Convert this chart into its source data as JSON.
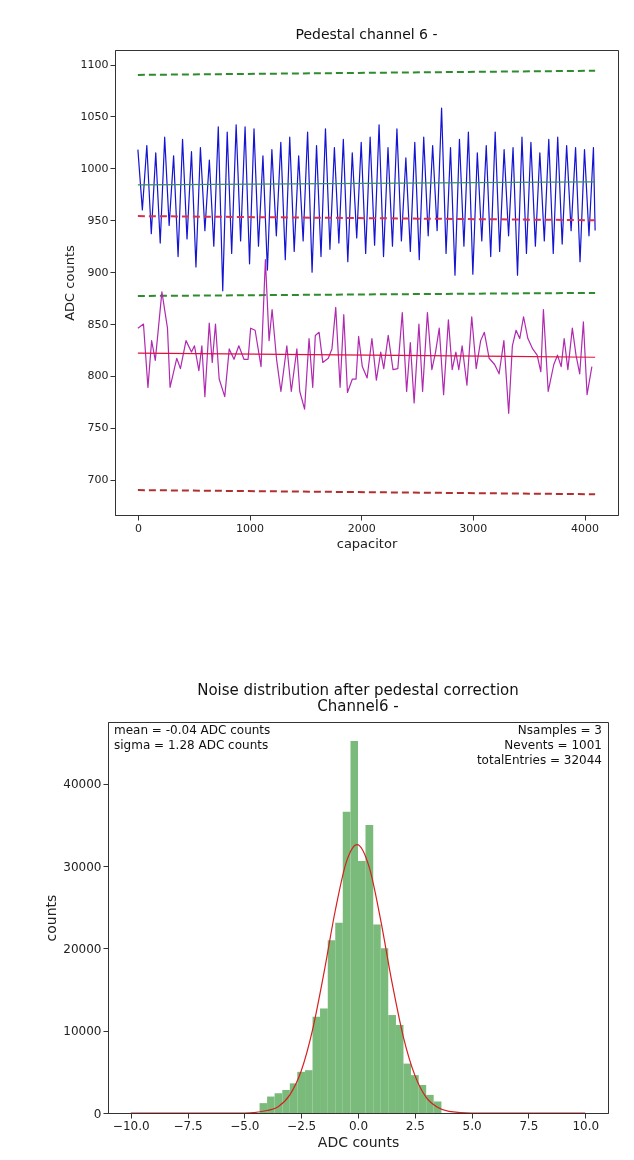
{
  "chart_data": [
    {
      "type": "line",
      "title": "Pedestal channel 6 -",
      "xlabel": "capacitor",
      "ylabel": "ADC counts",
      "xlim": [
        -205,
        4300
      ],
      "ylim": [
        666,
        1114
      ],
      "xticks": [
        0,
        1000,
        2000,
        3000,
        4000
      ],
      "yticks": [
        700,
        750,
        800,
        850,
        900,
        950,
        1000,
        1050,
        1100
      ],
      "series": [
        {
          "color": "#1414d2",
          "x": [
            0,
            40,
            80,
            120,
            160,
            200,
            240,
            280,
            320,
            360,
            400,
            440,
            480,
            520,
            560,
            600,
            640,
            680,
            720,
            760,
            800,
            840,
            880,
            920,
            960,
            1000,
            1040,
            1080,
            1120,
            1160,
            1200,
            1240,
            1280,
            1320,
            1360,
            1400,
            1440,
            1480,
            1520,
            1560,
            1600,
            1640,
            1680,
            1720,
            1760,
            1800,
            1840,
            1880,
            1920,
            1960,
            2000,
            2040,
            2080,
            2120,
            2160,
            2200,
            2240,
            2280,
            2320,
            2360,
            2400,
            2440,
            2480,
            2520,
            2560,
            2600,
            2640,
            2680,
            2720,
            2760,
            2800,
            2840,
            2880,
            2920,
            2960,
            3000,
            3040,
            3080,
            3120,
            3160,
            3200,
            3240,
            3280,
            3320,
            3360,
            3400,
            3440,
            3480,
            3520,
            3560,
            3600,
            3640,
            3680,
            3720,
            3760,
            3800,
            3840,
            3880,
            3920,
            3960,
            4000,
            4040,
            4080,
            4095
          ],
          "values": [
            1018,
            960,
            1022,
            937,
            1015,
            928,
            1030,
            945,
            1012,
            915,
            1028,
            932,
            1016,
            905,
            1020,
            940,
            1008,
            925,
            1040,
            882,
            1035,
            918,
            1042,
            930,
            1040,
            908,
            1038,
            925,
            1012,
            902,
            1018,
            935,
            1025,
            912,
            1030,
            920,
            1012,
            930,
            1035,
            900,
            1022,
            915,
            1038,
            922,
            1020,
            928,
            1028,
            910,
            1015,
            933,
            1025,
            918,
            1030,
            926,
            1042,
            915,
            1020,
            925,
            1038,
            930,
            1010,
            920,
            1025,
            912,
            1030,
            935,
            1022,
            940,
            1058,
            918,
            1020,
            897,
            1028,
            925,
            1035,
            898,
            1015,
            930,
            1022,
            915,
            1035,
            920,
            1018,
            935,
            1020,
            897,
            1030,
            918,
            1025,
            925,
            1015,
            930,
            1028,
            918,
            1030,
            927,
            1022,
            940,
            1020,
            910,
            1018,
            935,
            1020,
            940
          ]
        },
        {
          "color": "#3c8c64",
          "x": [
            0,
            4095
          ],
          "values": [
            984,
            987
          ]
        },
        {
          "color": "#2e8b2e",
          "line_style": "dashed",
          "x": [
            0,
            4095
          ],
          "values": [
            1090,
            1094
          ]
        },
        {
          "color": "#d83050",
          "line_style": "dashed",
          "x": [
            0,
            4095
          ],
          "values": [
            954,
            950
          ]
        },
        {
          "color": "#2e8b2e",
          "line_style": "dashed",
          "x": [
            0,
            4095
          ],
          "values": [
            877,
            880
          ]
        },
        {
          "color": "#b02ab0",
          "x": [
            0,
            50,
            90,
            123,
            156,
            215,
            265,
            288,
            348,
            381,
            431,
            480,
            507,
            546,
            573,
            600,
            639,
            666,
            695,
            728,
            778,
            818,
            861,
            904,
            950,
            987,
            1010,
            1050,
            1103,
            1142,
            1175,
            1202,
            1242,
            1281,
            1334,
            1374,
            1424,
            1450,
            1493,
            1533,
            1566,
            1589,
            1623,
            1656,
            1705,
            1738,
            1772,
            1811,
            1844,
            1877,
            1921,
            1954,
            1977,
            2010,
            2053,
            2096,
            2136,
            2175,
            2202,
            2242,
            2285,
            2328,
            2368,
            2407,
            2440,
            2474,
            2517,
            2550,
            2593,
            2633,
            2666,
            2699,
            2738,
            2781,
            2815,
            2848,
            2874,
            2904,
            2947,
            2990,
            3030,
            3070,
            3103,
            3146,
            3195,
            3235,
            3278,
            3321,
            3354,
            3387,
            3420,
            3454,
            3493,
            3536,
            3576,
            3609,
            3632,
            3675,
            3725,
            3758,
            3791,
            3818,
            3851,
            3891,
            3924,
            3957,
            3990,
            4023,
            4066
          ],
          "values": [
            846,
            850,
            789,
            834,
            815,
            881,
            846,
            789,
            817,
            807,
            834,
            823,
            829,
            805,
            829,
            780,
            851,
            813,
            850,
            797,
            780,
            826,
            816,
            829,
            816,
            816,
            846,
            844,
            809,
            912,
            834,
            864,
            816,
            785,
            829,
            785,
            826,
            785,
            768,
            836,
            789,
            839,
            842,
            813,
            817,
            826,
            866,
            789,
            859,
            784,
            797,
            797,
            838,
            809,
            798,
            836,
            796,
            823,
            807,
            839,
            806,
            807,
            861,
            785,
            832,
            774,
            850,
            785,
            861,
            806,
            823,
            846,
            782,
            854,
            806,
            823,
            806,
            829,
            791,
            857,
            807,
            834,
            842,
            817,
            811,
            802,
            834,
            764,
            829,
            844,
            836,
            857,
            836,
            826,
            820,
            804,
            864,
            785,
            811,
            820,
            809,
            836,
            806,
            846,
            820,
            802,
            852,
            782,
            809
          ]
        },
        {
          "color": "#e0103c",
          "x": [
            0,
            4095
          ],
          "values": [
            822,
            818
          ]
        },
        {
          "color": "#b03030",
          "line_style": "dashed",
          "x": [
            0,
            4095
          ],
          "values": [
            690,
            686
          ]
        }
      ]
    },
    {
      "type": "histogram",
      "title": "Noise distribution after pedestal correction",
      "subtitle": "Channel6 -",
      "xlabel": "ADC counts",
      "ylabel": "counts",
      "xlim": [
        -11,
        11
      ],
      "ylim": [
        0,
        47500
      ],
      "xticks": [
        {
          "value": -10,
          "label": "−10.0"
        },
        {
          "value": -7.5,
          "label": "−7.5"
        },
        {
          "value": -5,
          "label": "−5.0"
        },
        {
          "value": -2.5,
          "label": "−2.5"
        },
        {
          "value": 0,
          "label": "0.0"
        },
        {
          "value": 2.5,
          "label": "2.5"
        },
        {
          "value": 5,
          "label": "5.0"
        },
        {
          "value": 7.5,
          "label": "7.5"
        },
        {
          "value": 10,
          "label": "10.0"
        }
      ],
      "yticks": [
        0,
        10000,
        20000,
        30000,
        40000
      ],
      "bins": [
        -4.33,
        -4,
        -3.67,
        -3.33,
        -3,
        -2.67,
        -2.33,
        -2,
        -1.67,
        -1.33,
        -1,
        -0.67,
        -0.33,
        0,
        0.33,
        0.67,
        1,
        1.33,
        1.67,
        2,
        2.33,
        2.67,
        3,
        3.33,
        3.67
      ],
      "annotations": [
        "mean = -0.04 ADC counts",
        "sigma = 1.28 ADC counts",
        "Nsamples = 3",
        "Nevents = 1001",
        "totalEntries = 32044"
      ],
      "series": [
        {
          "color": "#7aba7a",
          "values": [
            1200,
            2000,
            2400,
            2800,
            3600,
            5000,
            5200,
            11700,
            12700,
            21000,
            23100,
            36600,
            45200,
            30600,
            35000,
            22900,
            20000,
            11900,
            10700,
            6000,
            4600,
            3400,
            2200,
            1400
          ]
        },
        {
          "type": "line",
          "color": "#d62020",
          "x": [
            -10,
            -5,
            -4,
            -3.5,
            -3,
            -2.5,
            -2,
            -1.5,
            -1,
            -0.5,
            -0.04,
            0.5,
            1,
            1.5,
            2,
            2.5,
            3,
            3.5,
            4,
            5,
            10
          ],
          "values": [
            0,
            0,
            300,
            800,
            2200,
            5100,
            10100,
            17000,
            24600,
            30600,
            32600,
            29800,
            23400,
            15800,
            9200,
            4600,
            1900,
            700,
            200,
            0,
            0
          ]
        }
      ]
    }
  ]
}
